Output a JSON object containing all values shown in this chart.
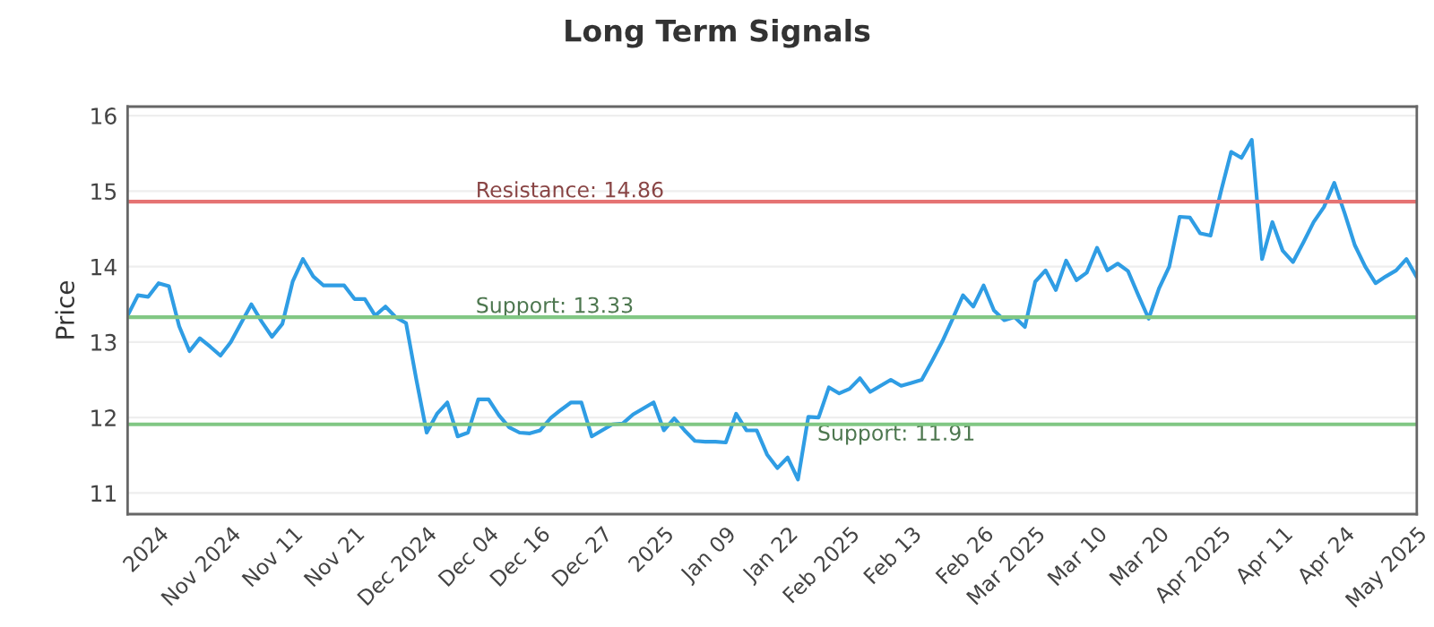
{
  "chart_data": {
    "type": "line",
    "title": "Long Term Signals",
    "ylabel": "Price",
    "categories": [
      null,
      null,
      null,
      "2024",
      null,
      null,
      null,
      null,
      null,
      null,
      "Nov 2024",
      null,
      null,
      null,
      null,
      null,
      "Nov 11",
      null,
      null,
      null,
      null,
      null,
      "Nov 21",
      null,
      null,
      null,
      null,
      null,
      null,
      "Dec 2024",
      null,
      null,
      null,
      null,
      null,
      "Dec 04",
      null,
      null,
      null,
      null,
      "Dec 16",
      null,
      null,
      null,
      null,
      null,
      "Dec 27",
      null,
      null,
      null,
      null,
      null,
      "2025",
      null,
      null,
      null,
      null,
      null,
      "Jan 09",
      null,
      null,
      null,
      null,
      null,
      "Jan 22",
      null,
      null,
      null,
      null,
      null,
      "Feb 2025",
      null,
      null,
      null,
      null,
      null,
      "Feb 13",
      null,
      null,
      null,
      null,
      null,
      null,
      "Feb 26",
      null,
      null,
      null,
      null,
      "Mar 2025",
      null,
      null,
      null,
      null,
      null,
      "Mar 10",
      null,
      null,
      null,
      null,
      null,
      "Mar 20",
      null,
      null,
      null,
      null,
      null,
      "Apr 2025",
      null,
      null,
      null,
      null,
      null,
      "Apr 11",
      null,
      null,
      null,
      null,
      null,
      "Apr 24",
      null,
      null,
      null,
      null,
      null,
      null,
      "May 2025"
    ],
    "series": [
      {
        "color": "#2f9de4",
        "values": [
          13.35,
          13.62,
          13.6,
          13.78,
          13.74,
          13.21,
          12.88,
          13.05,
          12.94,
          12.82,
          13.0,
          13.25,
          13.5,
          13.27,
          13.07,
          13.24,
          13.8,
          14.1,
          13.87,
          13.75,
          13.75,
          13.75,
          13.57,
          13.57,
          13.35,
          13.47,
          13.33,
          13.25,
          12.5,
          11.8,
          12.05,
          12.2,
          11.75,
          11.8,
          12.24,
          12.24,
          12.03,
          11.87,
          11.8,
          11.79,
          11.83,
          11.99,
          12.1,
          12.2,
          12.2,
          11.75,
          11.83,
          11.91,
          11.92,
          12.04,
          12.12,
          12.2,
          11.83,
          11.99,
          11.83,
          11.69,
          11.68,
          11.68,
          11.67,
          12.05,
          11.83,
          11.83,
          11.51,
          11.33,
          11.47,
          11.18,
          12.01,
          12.0,
          12.4,
          12.32,
          12.38,
          12.52,
          12.34,
          12.42,
          12.5,
          12.42,
          12.46,
          12.5,
          12.75,
          13.01,
          13.31,
          13.62,
          13.47,
          13.75,
          13.42,
          13.29,
          13.33,
          13.2,
          13.8,
          13.95,
          13.69,
          14.08,
          13.82,
          13.92,
          14.25,
          13.95,
          14.04,
          13.94,
          13.62,
          13.31,
          13.71,
          14.0,
          14.66,
          14.65,
          14.44,
          14.41,
          14.99,
          15.52,
          15.44,
          15.68,
          14.1,
          14.59,
          14.21,
          14.06,
          14.32,
          14.59,
          14.79,
          15.11,
          14.71,
          14.28,
          14.0,
          13.78,
          13.87,
          13.95,
          14.1,
          13.86
        ]
      }
    ],
    "ylim": [
      10.72,
      16.12
    ],
    "yticks": [
      11,
      12,
      13,
      14,
      15,
      16
    ],
    "grid": "y",
    "ref_lines": [
      {
        "axis": "y",
        "value": 14.86,
        "label": "Resistance: 14.86",
        "color": "#e57373"
      },
      {
        "axis": "y",
        "value": 13.33,
        "label": "Support: 13.33",
        "color": "#81c784"
      },
      {
        "axis": "y",
        "value": 11.91,
        "label": "Support: 11.91",
        "color": "#81c784"
      }
    ]
  }
}
